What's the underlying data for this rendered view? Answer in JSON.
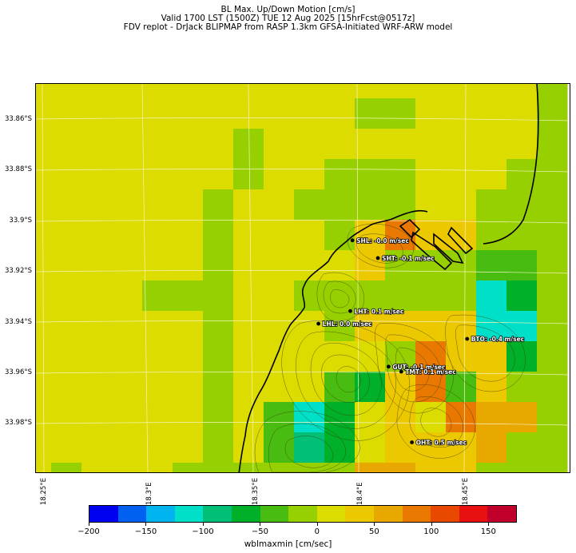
{
  "title": {
    "line1": "BL Max. Up/Down Motion [cm/s]",
    "line2": "Valid 1700 LST (1500Z) TUE 12 Aug 2025 [15hrFcst@0517z]",
    "line3": "FDV replot - DrJack BLIPMAP from RASP 1.3km GFSA-Initiated WRF-ARW model"
  },
  "lat_labels": [
    "33.86°S",
    "33.88°S",
    "33.9°S",
    "33.92°S",
    "33.94°S",
    "33.96°S",
    "33.98°S"
  ],
  "lon_labels": [
    "18.25°E",
    "18.3°E",
    "18.35°E",
    "18.4°E",
    "18.45°E"
  ],
  "stations": [
    {
      "label": "SHL: -0.0 m/sec",
      "lon": 18.394,
      "lat": -33.908
    },
    {
      "label": "SHT: -0.1 m/sec",
      "lon": 18.406,
      "lat": -33.915
    },
    {
      "label": "LHT: 0.1 m/sec",
      "lon": 18.393,
      "lat": -33.936
    },
    {
      "label": "LHL: 0.0 m/sec",
      "lon": 18.378,
      "lat": -33.941
    },
    {
      "label": "BTO: -0.4 m/sec",
      "lon": 18.448,
      "lat": -33.947
    },
    {
      "label": "GUT: -0.1 m/sec",
      "lon": 18.411,
      "lat": -33.958
    },
    {
      "label": "TMT: 0.1 m/sec",
      "lon": 18.417,
      "lat": -33.96
    },
    {
      "label": "OHT: 0.5 m/sec",
      "lon": 18.422,
      "lat": -33.988
    }
  ],
  "colorbar": {
    "label": "wblmaxmin [cm/sec]",
    "ticks": [
      "−200",
      "−150",
      "−100",
      "−50",
      "0",
      "50",
      "100",
      "150"
    ],
    "colors": [
      "#0000f0",
      "#0060f0",
      "#00b4f0",
      "#00e0c8",
      "#00c078",
      "#00b028",
      "#48bc10",
      "#96d000",
      "#dcdc00",
      "#ecc800",
      "#e8a800",
      "#e87800",
      "#e84800",
      "#e81010",
      "#c0002a"
    ]
  },
  "map": {
    "lon_range": [
      18.245,
      18.497
    ],
    "lat_range": [
      -34.0005,
      -33.846
    ],
    "cell_colors": {
      "Y": "#dcdc00",
      "G": "#96d000",
      "A": "#ecc800",
      "B": "#e8a800",
      "O": "#e87800",
      "M": "#48bc10",
      "D": "#00b028",
      "T": "#00e0c8",
      "S": "#00c078"
    },
    "grid": [
      "YYYYYYYYYYYYYYYYYG",
      "YYYYYYYYYYYGGYYYYG",
      "YYYYYYYGYYYYYYYYYG",
      "YYYYYYYGYYGGGYYYGG",
      "YYYYYYGYYGGGGYYGGG",
      "YYYYYYGYYYGAOAAGGG",
      "YYYYYYGYYYYAGGGMMG",
      "YYYYGGGYYGGGGGGTDG",
      "YYYYYYGYYYGAAAATTG",
      "YYYYYYGYYYYYGOAADG",
      "YYYYYYGYYYMDAOMAGG",
      "YYYYYYGYMTDYAYOBBG",
      "YYYYYYGYMSDYAAABGG",
      "YGYYYGGGGGGBBAAGGG"
    ]
  }
}
